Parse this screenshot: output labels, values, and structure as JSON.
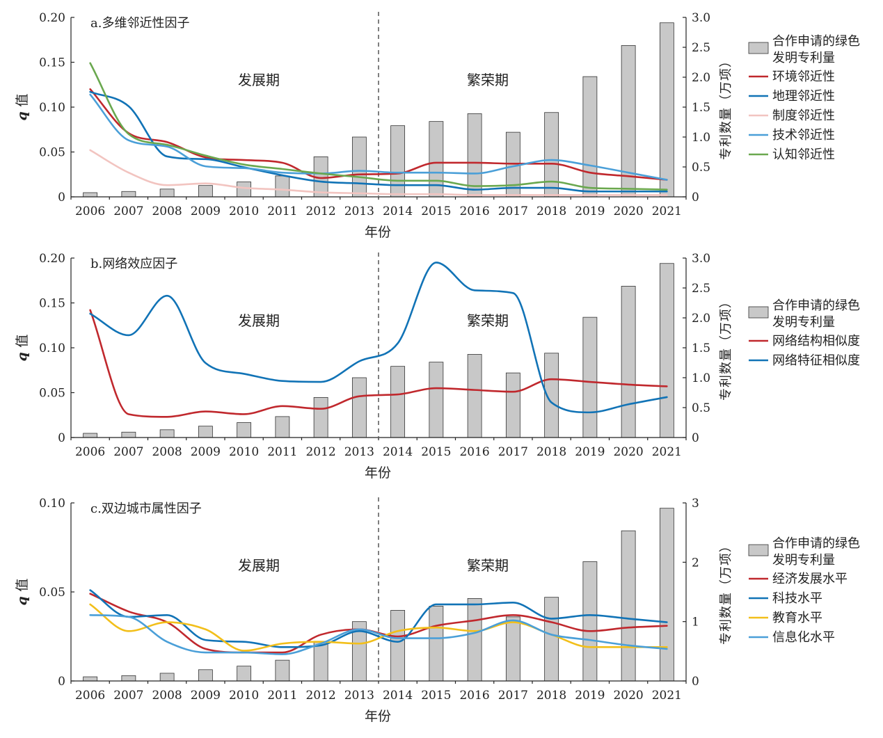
{
  "colors": {
    "bar": "#c8c8c8",
    "bar_stroke": "#333333",
    "divider": "#7f7f7f",
    "axis": "#222222"
  },
  "chart_data": [
    {
      "type": "bar",
      "title": "a.多维邻近性因子",
      "xlabel": "年份",
      "ylabel_left_italic": "q",
      "ylabel_left_rest": "值",
      "ylabel_right": "专利数量（万项）",
      "ylim_left": [
        0,
        0.2
      ],
      "ylim_right": [
        0,
        3
      ],
      "left_ticks": [
        "0",
        "0.05",
        "0.10",
        "0.15",
        "0.20"
      ],
      "right_ticks": [
        "0",
        "0.5",
        "1.0",
        "1.5",
        "2.0",
        "2.5",
        "3.0"
      ],
      "categories": [
        "2006",
        "2007",
        "2008",
        "2009",
        "2010",
        "2011",
        "2012",
        "2013",
        "2014",
        "2015",
        "2016",
        "2017",
        "2018",
        "2019",
        "2020",
        "2021"
      ],
      "phase_labels": [
        "发展期",
        "繁荣期"
      ],
      "divider_after": "2013",
      "bars": {
        "name": "合作申请的绿色发明专利量",
        "name_lines": [
          "合作申请的绿色",
          "发明专利量"
        ],
        "values": [
          0.07,
          0.09,
          0.13,
          0.19,
          0.25,
          0.35,
          0.67,
          1.0,
          1.19,
          1.26,
          1.39,
          1.08,
          1.41,
          2.01,
          2.53,
          2.91
        ]
      },
      "series": [
        {
          "name": "环境邻近性",
          "color": "#c0282d",
          "values": [
            0.12,
            0.071,
            0.061,
            0.044,
            0.041,
            0.038,
            0.021,
            0.025,
            0.026,
            0.038,
            0.038,
            0.037,
            0.037,
            0.027,
            0.023,
            0.019
          ]
        },
        {
          "name": "地理邻近性",
          "color": "#1173b6",
          "values": [
            0.117,
            0.101,
            0.045,
            0.042,
            0.033,
            0.024,
            0.017,
            0.015,
            0.013,
            0.013,
            0.008,
            0.01,
            0.01,
            0.006,
            0.006,
            0.006
          ]
        },
        {
          "name": "制度邻近性",
          "color": "#f2c4c0",
          "values": [
            0.052,
            0.027,
            0.013,
            0.015,
            0.01,
            0.008,
            0.005,
            0.004,
            0.003,
            0.003,
            0.002,
            0.002,
            0.002,
            0.002,
            0.002,
            0.002
          ]
        },
        {
          "name": "技术邻近性",
          "color": "#4a9fd8",
          "values": [
            0.114,
            0.063,
            0.056,
            0.034,
            0.032,
            0.027,
            0.026,
            0.029,
            0.027,
            0.027,
            0.026,
            0.034,
            0.041,
            0.035,
            0.027,
            0.019
          ]
        },
        {
          "name": "认知邻近性",
          "color": "#6aa84f",
          "values": [
            0.149,
            0.07,
            0.058,
            0.046,
            0.036,
            0.031,
            0.026,
            0.022,
            0.018,
            0.018,
            0.012,
            0.013,
            0.017,
            0.01,
            0.009,
            0.008
          ]
        }
      ]
    },
    {
      "type": "bar",
      "title": "b.网络效应因子",
      "xlabel": "年份",
      "ylabel_left_italic": "q",
      "ylabel_left_rest": "值",
      "ylabel_right": "专利数量（万项）",
      "ylim_left": [
        0,
        0.2
      ],
      "ylim_right": [
        0,
        3
      ],
      "left_ticks": [
        "0",
        "0.05",
        "0.10",
        "0.15",
        "0.20"
      ],
      "right_ticks": [
        "0",
        "0.5",
        "1.0",
        "1.5",
        "2.0",
        "2.5",
        "3.0"
      ],
      "categories": [
        "2006",
        "2007",
        "2008",
        "2009",
        "2010",
        "2011",
        "2012",
        "2013",
        "2014",
        "2015",
        "2016",
        "2017",
        "2018",
        "2019",
        "2020",
        "2021"
      ],
      "phase_labels": [
        "发展期",
        "繁荣期"
      ],
      "divider_after": "2013",
      "bars": {
        "name": "合作申请的绿色发明专利量",
        "name_lines": [
          "合作申请的绿色",
          "发明专利量"
        ],
        "values": [
          0.07,
          0.09,
          0.13,
          0.19,
          0.25,
          0.35,
          0.67,
          1.0,
          1.19,
          1.26,
          1.39,
          1.08,
          1.41,
          2.01,
          2.53,
          2.91
        ]
      },
      "series": [
        {
          "name": "网络结构相似度",
          "color": "#c0282d",
          "values": [
            0.142,
            0.026,
            0.023,
            0.029,
            0.026,
            0.035,
            0.032,
            0.046,
            0.048,
            0.055,
            0.053,
            0.051,
            0.065,
            0.062,
            0.059,
            0.057
          ]
        },
        {
          "name": "网络特征相似度",
          "color": "#1173b6",
          "values": [
            0.138,
            0.114,
            0.158,
            0.083,
            0.071,
            0.063,
            0.062,
            0.085,
            0.105,
            0.195,
            0.164,
            0.161,
            0.039,
            0.028,
            0.037,
            0.045
          ]
        }
      ]
    },
    {
      "type": "bar",
      "title": "c.双边城市属性因子",
      "xlabel": "年份",
      "ylabel_left_italic": "q",
      "ylabel_left_rest": "值",
      "ylabel_right": "专利数量（万项）",
      "ylim_left": [
        0,
        0.1
      ],
      "ylim_right": [
        0,
        3
      ],
      "left_ticks": [
        "0",
        "0.05",
        "0.10"
      ],
      "right_ticks": [
        "0",
        "1",
        "2",
        "3"
      ],
      "categories": [
        "2006",
        "2007",
        "2008",
        "2009",
        "2010",
        "2011",
        "2012",
        "2013",
        "2014",
        "2015",
        "2016",
        "2017",
        "2018",
        "2019",
        "2020",
        "2021"
      ],
      "phase_labels": [
        "发展期",
        "繁荣期"
      ],
      "divider_after": "2013",
      "bars": {
        "name": "合作申请的绿色发明专利量",
        "name_lines": [
          "合作申请的绿色",
          "发明专利量"
        ],
        "values": [
          0.07,
          0.09,
          0.13,
          0.19,
          0.25,
          0.35,
          0.67,
          1.0,
          1.19,
          1.26,
          1.39,
          1.08,
          1.41,
          2.01,
          2.53,
          2.91
        ]
      },
      "series": [
        {
          "name": "经济发展水平",
          "color": "#c0282d",
          "values": [
            0.049,
            0.039,
            0.033,
            0.018,
            0.016,
            0.016,
            0.026,
            0.029,
            0.025,
            0.031,
            0.034,
            0.037,
            0.033,
            0.028,
            0.03,
            0.031
          ]
        },
        {
          "name": "科技水平",
          "color": "#1173b6",
          "values": [
            0.051,
            0.036,
            0.037,
            0.023,
            0.022,
            0.019,
            0.02,
            0.028,
            0.022,
            0.043,
            0.043,
            0.044,
            0.035,
            0.037,
            0.035,
            0.033
          ]
        },
        {
          "name": "教育水平",
          "color": "#f2bf1a",
          "values": [
            0.043,
            0.028,
            0.033,
            0.029,
            0.017,
            0.021,
            0.022,
            0.021,
            0.028,
            0.03,
            0.028,
            0.033,
            0.026,
            0.019,
            0.019,
            0.019
          ]
        },
        {
          "name": "信息化水平",
          "color": "#4a9fd8",
          "values": [
            0.037,
            0.036,
            0.022,
            0.016,
            0.016,
            0.015,
            0.021,
            0.029,
            0.024,
            0.024,
            0.027,
            0.034,
            0.026,
            0.023,
            0.02,
            0.018
          ]
        }
      ]
    }
  ]
}
